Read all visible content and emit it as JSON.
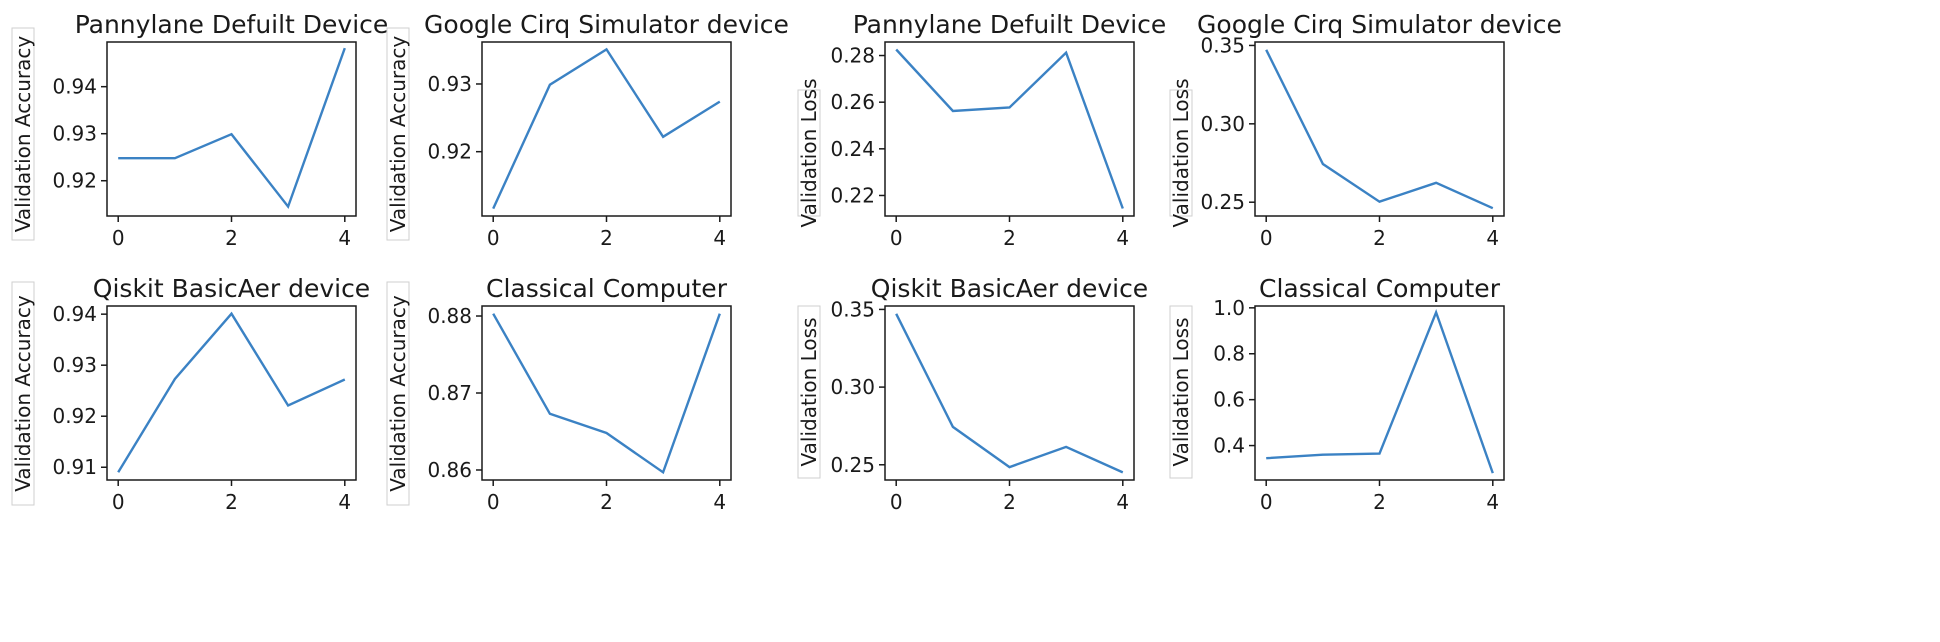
{
  "chart_data": [
    {
      "type": "line",
      "title": "Pannylane Defuilt Device",
      "xlabel": "",
      "ylabel": "Validation Accuracy",
      "x": [
        0,
        1,
        2,
        3,
        4
      ],
      "series": [
        {
          "values": [
            0.9248,
            0.9248,
            0.9299,
            0.9145,
            0.9482
          ]
        }
      ],
      "xticks": [
        0,
        2,
        4
      ],
      "yticks": [
        0.92,
        0.93,
        0.94
      ],
      "ylim": [
        0.9125,
        0.9495
      ],
      "grid": false,
      "line_color": "#3b82c4"
    },
    {
      "type": "line",
      "title": "Google Cirq Simulator device",
      "xlabel": "",
      "ylabel": "Validation Accuracy",
      "x": [
        0,
        1,
        2,
        3,
        4
      ],
      "series": [
        {
          "values": [
            0.9116,
            0.9299,
            0.9351,
            0.9222,
            0.9274
          ]
        }
      ],
      "xticks": [
        0,
        2,
        4
      ],
      "yticks": [
        0.92,
        0.93
      ],
      "ylim": [
        0.9105,
        0.9362
      ],
      "grid": false,
      "line_color": "#3b82c4"
    },
    {
      "type": "line",
      "title": "Pannylane Defuilt Device",
      "xlabel": "",
      "ylabel": "Validation Loss",
      "x": [
        0,
        1,
        2,
        3,
        4
      ],
      "series": [
        {
          "values": [
            0.2826,
            0.2562,
            0.2577,
            0.2812,
            0.2144
          ]
        }
      ],
      "xticks": [
        0,
        2,
        4
      ],
      "yticks": [
        0.22,
        0.24,
        0.26,
        0.28
      ],
      "ylim": [
        0.2112,
        0.2858
      ],
      "grid": false,
      "line_color": "#3b82c4"
    },
    {
      "type": "line",
      "title": "Google Cirq Simulator device",
      "xlabel": "",
      "ylabel": "Validation Loss",
      "x": [
        0,
        1,
        2,
        3,
        4
      ],
      "series": [
        {
          "values": [
            0.3472,
            0.2744,
            0.2503,
            0.2624,
            0.2462
          ]
        }
      ],
      "xticks": [
        0,
        2,
        4
      ],
      "yticks": [
        0.25,
        0.3,
        0.35
      ],
      "ylim": [
        0.2412,
        0.3522
      ],
      "grid": false,
      "line_color": "#3b82c4"
    },
    {
      "type": "line",
      "title": "Qiskit BasicAer device",
      "xlabel": "",
      "ylabel": "Validation Accuracy",
      "x": [
        0,
        1,
        2,
        3,
        4
      ],
      "series": [
        {
          "values": [
            0.909,
            0.9273,
            0.9401,
            0.9221,
            0.9272
          ]
        }
      ],
      "xticks": [
        0,
        2,
        4
      ],
      "yticks": [
        0.91,
        0.92,
        0.93,
        0.94
      ],
      "ylim": [
        0.9075,
        0.9416
      ],
      "grid": false,
      "line_color": "#3b82c4"
    },
    {
      "type": "line",
      "title": "Classical Computer",
      "xlabel": "",
      "ylabel": "Validation Accuracy",
      "x": [
        0,
        1,
        2,
        3,
        4
      ],
      "series": [
        {
          "values": [
            0.8803,
            0.8673,
            0.8648,
            0.8597,
            0.8803
          ]
        }
      ],
      "xticks": [
        0,
        2,
        4
      ],
      "yticks": [
        0.86,
        0.87,
        0.88
      ],
      "ylim": [
        0.8587,
        0.8813
      ],
      "grid": false,
      "line_color": "#3b82c4"
    },
    {
      "type": "line",
      "title": "Qiskit BasicAer device",
      "xlabel": "",
      "ylabel": "Validation Loss",
      "x": [
        0,
        1,
        2,
        3,
        4
      ],
      "series": [
        {
          "values": [
            0.3472,
            0.2744,
            0.2485,
            0.2615,
            0.2451
          ]
        }
      ],
      "xticks": [
        0,
        2,
        4
      ],
      "yticks": [
        0.25,
        0.3,
        0.35
      ],
      "ylim": [
        0.2402,
        0.3522
      ],
      "grid": false,
      "line_color": "#3b82c4"
    },
    {
      "type": "line",
      "title": "Classical Computer",
      "xlabel": "",
      "ylabel": "Validation Loss",
      "x": [
        0,
        1,
        2,
        3,
        4
      ],
      "series": [
        {
          "values": [
            0.345,
            0.36,
            0.365,
            0.98,
            0.28
          ]
        }
      ],
      "xticks": [
        0,
        2,
        4
      ],
      "yticks": [
        0.4,
        0.6,
        0.8,
        1.0
      ],
      "ylim": [
        0.25,
        1.008
      ],
      "grid": false,
      "line_color": "#3b82c4"
    }
  ]
}
